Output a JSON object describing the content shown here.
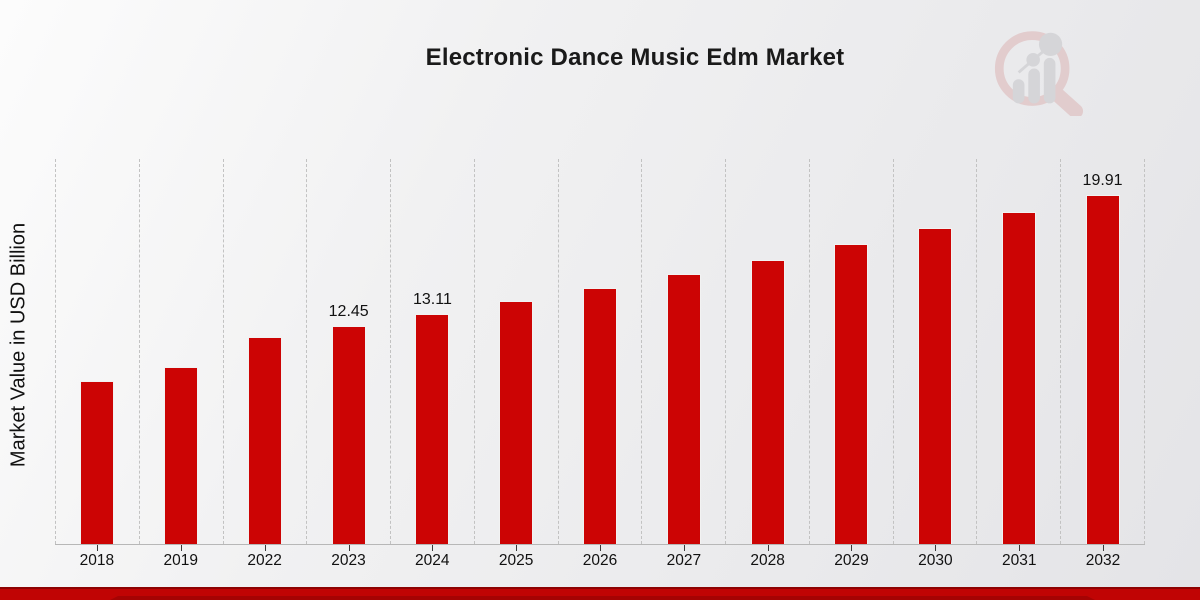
{
  "header": {
    "title": "Electronic Dance Music Edm Market"
  },
  "watermark": {
    "name": "market-research-magnifier-logo",
    "ring_color": "#dcb5b5",
    "bars_color": "#c5c5c9"
  },
  "chart_data": {
    "type": "bar",
    "title": "Electronic Dance Music Edm Market",
    "xlabel": "",
    "ylabel": "Market Value in USD Billion",
    "categories": [
      "2018",
      "2019",
      "2022",
      "2023",
      "2024",
      "2025",
      "2026",
      "2027",
      "2028",
      "2029",
      "2030",
      "2031",
      "2032"
    ],
    "values": [
      9.3,
      10.1,
      11.8,
      12.45,
      13.11,
      13.85,
      14.6,
      15.4,
      16.2,
      17.1,
      18.0,
      18.95,
      19.91
    ],
    "data_labels": [
      "",
      "",
      "",
      "12.45",
      "13.11",
      "",
      "",
      "",
      "",
      "",
      "",
      "",
      "19.91"
    ],
    "ylim": [
      0,
      22
    ],
    "grid": "vertical-dashed",
    "legend": "none",
    "bar_color": "#cc0404"
  },
  "footer": {
    "band_color": "#c00404",
    "band_border_color": "#8e0202"
  }
}
